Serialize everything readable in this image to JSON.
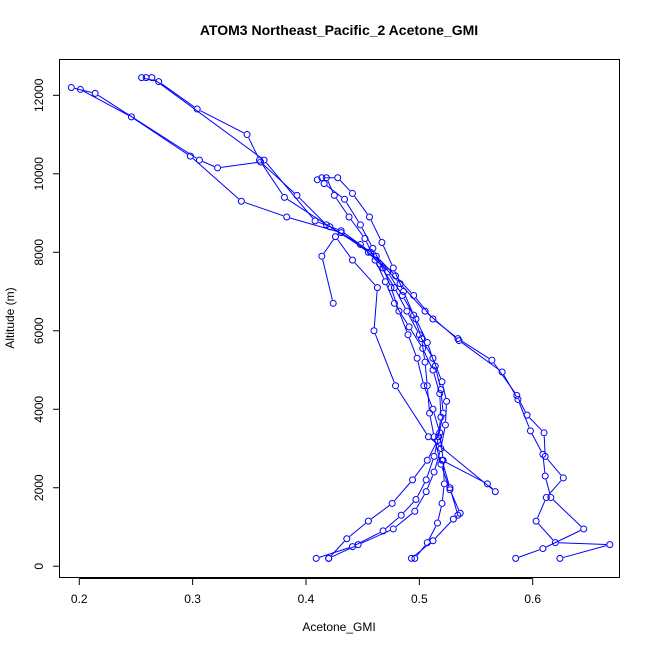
{
  "chart_data": {
    "type": "line",
    "title": "ATOM3 Northeast_Pacific_2 Acetone_GMI",
    "xlabel": "Acetone_GMI",
    "ylabel": "Altitude (m)",
    "xlim": [
      0.183,
      0.677
    ],
    "ylim": [
      -300,
      12900
    ],
    "x_ticks": [
      0.2,
      0.3,
      0.4,
      0.5,
      0.6
    ],
    "y_ticks": [
      0,
      2000,
      4000,
      6000,
      8000,
      10000,
      12000
    ],
    "grid": false,
    "legend": "none",
    "color": "#0000ff",
    "series": [
      {
        "values": [
          {
            "x": 0.409,
            "y": 200
          },
          {
            "x": 0.441,
            "y": 500
          },
          {
            "x": 0.468,
            "y": 900
          },
          {
            "x": 0.484,
            "y": 1300
          },
          {
            "x": 0.497,
            "y": 1700
          },
          {
            "x": 0.506,
            "y": 2200
          },
          {
            "x": 0.513,
            "y": 2800
          },
          {
            "x": 0.517,
            "y": 3300
          },
          {
            "x": 0.521,
            "y": 3900
          },
          {
            "x": 0.519,
            "y": 4500
          },
          {
            "x": 0.514,
            "y": 5100
          },
          {
            "x": 0.507,
            "y": 5700
          },
          {
            "x": 0.497,
            "y": 6300
          },
          {
            "x": 0.485,
            "y": 6900
          },
          {
            "x": 0.472,
            "y": 7500
          },
          {
            "x": 0.455,
            "y": 8000
          },
          {
            "x": 0.431,
            "y": 8500
          },
          {
            "x": 0.383,
            "y": 8900
          },
          {
            "x": 0.343,
            "y": 9300
          },
          {
            "x": 0.298,
            "y": 10450
          },
          {
            "x": 0.246,
            "y": 11450
          },
          {
            "x": 0.201,
            "y": 12150
          }
        ]
      },
      {
        "values": [
          {
            "x": 0.42,
            "y": 200
          },
          {
            "x": 0.446,
            "y": 550
          },
          {
            "x": 0.477,
            "y": 950
          },
          {
            "x": 0.496,
            "y": 1400
          },
          {
            "x": 0.506,
            "y": 1900
          },
          {
            "x": 0.513,
            "y": 2400
          },
          {
            "x": 0.519,
            "y": 3000
          },
          {
            "x": 0.523,
            "y": 3600
          },
          {
            "x": 0.524,
            "y": 4200
          },
          {
            "x": 0.52,
            "y": 4700
          },
          {
            "x": 0.512,
            "y": 5300
          },
          {
            "x": 0.5,
            "y": 5900
          },
          {
            "x": 0.489,
            "y": 6500
          },
          {
            "x": 0.478,
            "y": 7100
          },
          {
            "x": 0.465,
            "y": 7700
          },
          {
            "x": 0.448,
            "y": 8200
          },
          {
            "x": 0.418,
            "y": 8700
          },
          {
            "x": 0.392,
            "y": 9450
          },
          {
            "x": 0.36,
            "y": 10300
          },
          {
            "x": 0.322,
            "y": 10150
          },
          {
            "x": 0.306,
            "y": 10350
          },
          {
            "x": 0.214,
            "y": 12050
          },
          {
            "x": 0.193,
            "y": 12200
          }
        ]
      },
      {
        "values": [
          {
            "x": 0.496,
            "y": 200
          },
          {
            "x": 0.507,
            "y": 600
          },
          {
            "x": 0.516,
            "y": 1100
          },
          {
            "x": 0.52,
            "y": 1600
          },
          {
            "x": 0.522,
            "y": 2100
          },
          {
            "x": 0.521,
            "y": 2700
          },
          {
            "x": 0.518,
            "y": 3400
          },
          {
            "x": 0.512,
            "y": 4000
          },
          {
            "x": 0.504,
            "y": 4600
          },
          {
            "x": 0.498,
            "y": 5300
          },
          {
            "x": 0.49,
            "y": 5900
          },
          {
            "x": 0.482,
            "y": 6500
          },
          {
            "x": 0.475,
            "y": 7100
          },
          {
            "x": 0.468,
            "y": 7600
          },
          {
            "x": 0.459,
            "y": 8100
          },
          {
            "x": 0.448,
            "y": 8700
          },
          {
            "x": 0.434,
            "y": 9350
          },
          {
            "x": 0.416,
            "y": 9750
          },
          {
            "x": 0.41,
            "y": 9850
          }
        ]
      },
      {
        "values": [
          {
            "x": 0.493,
            "y": 200
          },
          {
            "x": 0.512,
            "y": 650
          },
          {
            "x": 0.53,
            "y": 1200
          },
          {
            "x": 0.536,
            "y": 1350
          },
          {
            "x": 0.527,
            "y": 1950
          },
          {
            "x": 0.519,
            "y": 2600
          },
          {
            "x": 0.513,
            "y": 3300
          },
          {
            "x": 0.509,
            "y": 3900
          },
          {
            "x": 0.507,
            "y": 4600
          },
          {
            "x": 0.505,
            "y": 5200
          },
          {
            "x": 0.502,
            "y": 5800
          },
          {
            "x": 0.495,
            "y": 6400
          },
          {
            "x": 0.486,
            "y": 7000
          },
          {
            "x": 0.477,
            "y": 7600
          },
          {
            "x": 0.467,
            "y": 8250
          },
          {
            "x": 0.456,
            "y": 8900
          },
          {
            "x": 0.441,
            "y": 9500
          },
          {
            "x": 0.428,
            "y": 9900
          },
          {
            "x": 0.414,
            "y": 9900
          }
        ]
      },
      {
        "values": [
          {
            "x": 0.42,
            "y": 200
          },
          {
            "x": 0.436,
            "y": 700
          },
          {
            "x": 0.455,
            "y": 1150
          },
          {
            "x": 0.476,
            "y": 1600
          },
          {
            "x": 0.494,
            "y": 2200
          },
          {
            "x": 0.507,
            "y": 2700
          },
          {
            "x": 0.516,
            "y": 3200
          },
          {
            "x": 0.519,
            "y": 3800
          },
          {
            "x": 0.518,
            "y": 4400
          },
          {
            "x": 0.512,
            "y": 5000
          },
          {
            "x": 0.503,
            "y": 5550
          },
          {
            "x": 0.491,
            "y": 6100
          },
          {
            "x": 0.478,
            "y": 6700
          },
          {
            "x": 0.47,
            "y": 7250
          },
          {
            "x": 0.461,
            "y": 7800
          },
          {
            "x": 0.452,
            "y": 8350
          },
          {
            "x": 0.438,
            "y": 8900
          },
          {
            "x": 0.425,
            "y": 9450
          },
          {
            "x": 0.418,
            "y": 9900
          }
        ]
      },
      {
        "values": [
          {
            "x": 0.585,
            "y": 200
          },
          {
            "x": 0.609,
            "y": 450
          },
          {
            "x": 0.645,
            "y": 950
          },
          {
            "x": 0.616,
            "y": 1750
          },
          {
            "x": 0.611,
            "y": 2300
          },
          {
            "x": 0.609,
            "y": 2850
          },
          {
            "x": 0.598,
            "y": 3450
          },
          {
            "x": 0.587,
            "y": 4250
          },
          {
            "x": 0.573,
            "y": 4950
          },
          {
            "x": 0.535,
            "y": 5750
          },
          {
            "x": 0.505,
            "y": 6500
          },
          {
            "x": 0.483,
            "y": 7200
          },
          {
            "x": 0.457,
            "y": 8000
          },
          {
            "x": 0.421,
            "y": 8650
          },
          {
            "x": 0.381,
            "y": 9400
          },
          {
            "x": 0.359,
            "y": 10350
          },
          {
            "x": 0.348,
            "y": 11000
          },
          {
            "x": 0.304,
            "y": 11650
          },
          {
            "x": 0.27,
            "y": 12350
          },
          {
            "x": 0.255,
            "y": 12450
          }
        ]
      },
      {
        "values": [
          {
            "x": 0.624,
            "y": 200
          },
          {
            "x": 0.668,
            "y": 550
          },
          {
            "x": 0.62,
            "y": 600
          },
          {
            "x": 0.603,
            "y": 1150
          },
          {
            "x": 0.612,
            "y": 1750
          },
          {
            "x": 0.627,
            "y": 2250
          },
          {
            "x": 0.611,
            "y": 2800
          },
          {
            "x": 0.61,
            "y": 3400
          },
          {
            "x": 0.595,
            "y": 3850
          },
          {
            "x": 0.586,
            "y": 4350
          },
          {
            "x": 0.564,
            "y": 5250
          },
          {
            "x": 0.534,
            "y": 5800
          },
          {
            "x": 0.512,
            "y": 6300
          },
          {
            "x": 0.495,
            "y": 6900
          },
          {
            "x": 0.479,
            "y": 7400
          },
          {
            "x": 0.462,
            "y": 7900
          },
          {
            "x": 0.431,
            "y": 8550
          },
          {
            "x": 0.408,
            "y": 8800
          },
          {
            "x": 0.363,
            "y": 10350
          },
          {
            "x": 0.264,
            "y": 12450
          },
          {
            "x": 0.259,
            "y": 12450
          }
        ]
      },
      {
        "values": [
          {
            "x": 0.534,
            "y": 1300
          },
          {
            "x": 0.527,
            "y": 2000
          },
          {
            "x": 0.52,
            "y": 2700
          },
          {
            "x": 0.56,
            "y": 2100
          },
          {
            "x": 0.567,
            "y": 1900
          },
          {
            "x": 0.508,
            "y": 3300
          },
          {
            "x": 0.479,
            "y": 4600
          },
          {
            "x": 0.46,
            "y": 6000
          },
          {
            "x": 0.463,
            "y": 7100
          },
          {
            "x": 0.441,
            "y": 7800
          },
          {
            "x": 0.426,
            "y": 8400
          },
          {
            "x": 0.414,
            "y": 7900
          },
          {
            "x": 0.424,
            "y": 6700
          }
        ]
      }
    ]
  }
}
